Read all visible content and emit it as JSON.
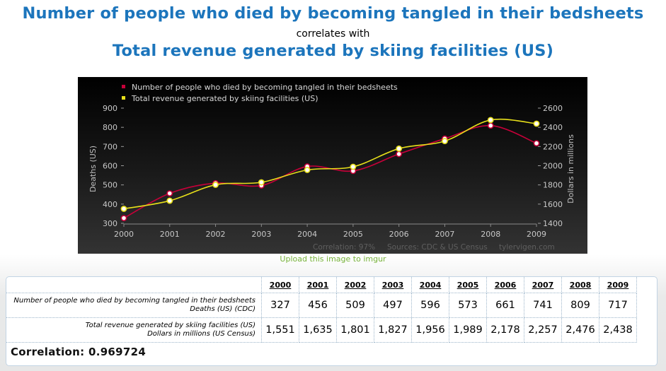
{
  "header": {
    "title1": "Number of people who died by becoming tangled in their bedsheets",
    "connector": "correlates with",
    "title2": "Total revenue generated by skiing facilities (US)"
  },
  "upload_link": "Upload this image to imgur",
  "chart_data": {
    "type": "line",
    "x": [
      2000,
      2001,
      2002,
      2003,
      2004,
      2005,
      2006,
      2007,
      2008,
      2009
    ],
    "series": [
      {
        "name": "Number of people who died by becoming tangled in their bedsheets",
        "axis": "left",
        "color": "#c70039",
        "values": [
          327,
          456,
          509,
          497,
          596,
          573,
          661,
          741,
          809,
          717
        ]
      },
      {
        "name": "Total revenue generated by skiing facilities (US)",
        "axis": "right",
        "color": "#e8e01a",
        "values": [
          1551,
          1635,
          1801,
          1827,
          1956,
          1989,
          2178,
          2257,
          2476,
          2438
        ]
      }
    ],
    "ylabel_left": "Deaths (US)",
    "ylabel_right": "Dollars in millions",
    "ylim_left": [
      300,
      900
    ],
    "ylim_right": [
      1400,
      2600
    ],
    "yticks_left": [
      "300",
      "400",
      "500",
      "600",
      "700",
      "800",
      "900"
    ],
    "yticks_right": [
      "1400",
      "1600",
      "1800",
      "2000",
      "2200",
      "2400",
      "2600"
    ],
    "xticks": [
      "2000",
      "2001",
      "2002",
      "2003",
      "2004",
      "2005",
      "2006",
      "2007",
      "2008",
      "2009"
    ],
    "footer_correlation": "Correlation: 97%",
    "footer_sources": "Sources: CDC & US Census",
    "footer_site": "tylervigen.com",
    "background": "#000000",
    "legend_position": "top-left"
  },
  "table": {
    "years": [
      "2000",
      "2001",
      "2002",
      "2003",
      "2004",
      "2005",
      "2006",
      "2007",
      "2008",
      "2009"
    ],
    "row1": {
      "label": "Number of people who died by becoming tangled in their bedsheets",
      "sublabel": "Deaths (US) (CDC)",
      "values": [
        "327",
        "456",
        "509",
        "497",
        "596",
        "573",
        "661",
        "741",
        "809",
        "717"
      ]
    },
    "row2": {
      "label": "Total revenue generated by skiing facilities (US)",
      "sublabel": "Dollars in millions (US Census)",
      "values": [
        "1,551",
        "1,635",
        "1,801",
        "1,827",
        "1,956",
        "1,989",
        "2,178",
        "2,257",
        "2,476",
        "2,438"
      ]
    },
    "correlation": "Correlation: 0.969724"
  }
}
